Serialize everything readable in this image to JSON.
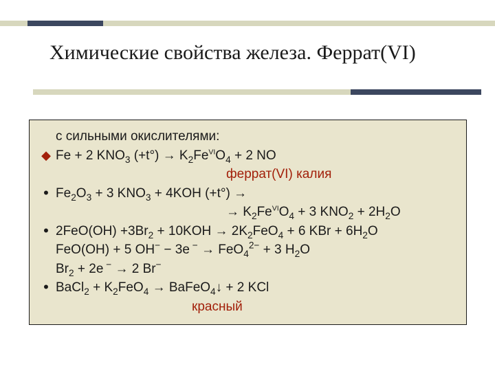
{
  "colors": {
    "rule_light": "#d7d7bd",
    "rule_dark": "#3c475f",
    "content_bg": "#e9e5cd",
    "content_border": "#1a1a1a",
    "text": "#1a1a1a",
    "accent_red": "#a2200a",
    "background": "#ffffff"
  },
  "typography": {
    "title_family": "Times New Roman",
    "title_size_pt": 24,
    "body_family": "Verdana",
    "body_size_pt": 14
  },
  "title": "Химические свойства железа. Феррат(VI)",
  "intro": "с сильными окислителями:",
  "lines": {
    "l1": "Fe + 2 KNO<sub>3</sub> (+t°) → K<sub>2</sub>Fe<span class=\"vi\">VI</span>O<sub>4</sub> + 2 NO",
    "l1_label": "феррат(VI) калия",
    "l2a": "Fe<sub>2</sub>O<sub>3</sub> + 3 KNO<sub>3</sub> + 4KOH (+t°) →",
    "l2b": "→ K<sub>2</sub>Fe<span class=\"vi\">VI</span>O<sub>4</sub> + 3 KNO<sub>2</sub> + 2H<sub>2</sub>O",
    "l3": "2FeO(OH) +3Br<sub>2</sub> + 10KOH → 2K<sub>2</sub>FeO<sub>4</sub> + 6 KBr + 6H<sub>2</sub>O",
    "l3a": "FeO(OH) + 5 OH<sup>−</sup> − 3e<sup> −</sup> → FeO<sub>4</sub><sup>2−</sup> + 3 H<sub>2</sub>O",
    "l3b": "Br<sub>2</sub> + 2e<sup> −</sup> → 2 Br<sup>−</sup>",
    "l4": "BaCl<sub>2</sub> + K<sub>2</sub>FeO<sub>4</sub> → BaFeO<sub>4</sub>↓ + 2 KCl",
    "l4_label": "красный"
  }
}
